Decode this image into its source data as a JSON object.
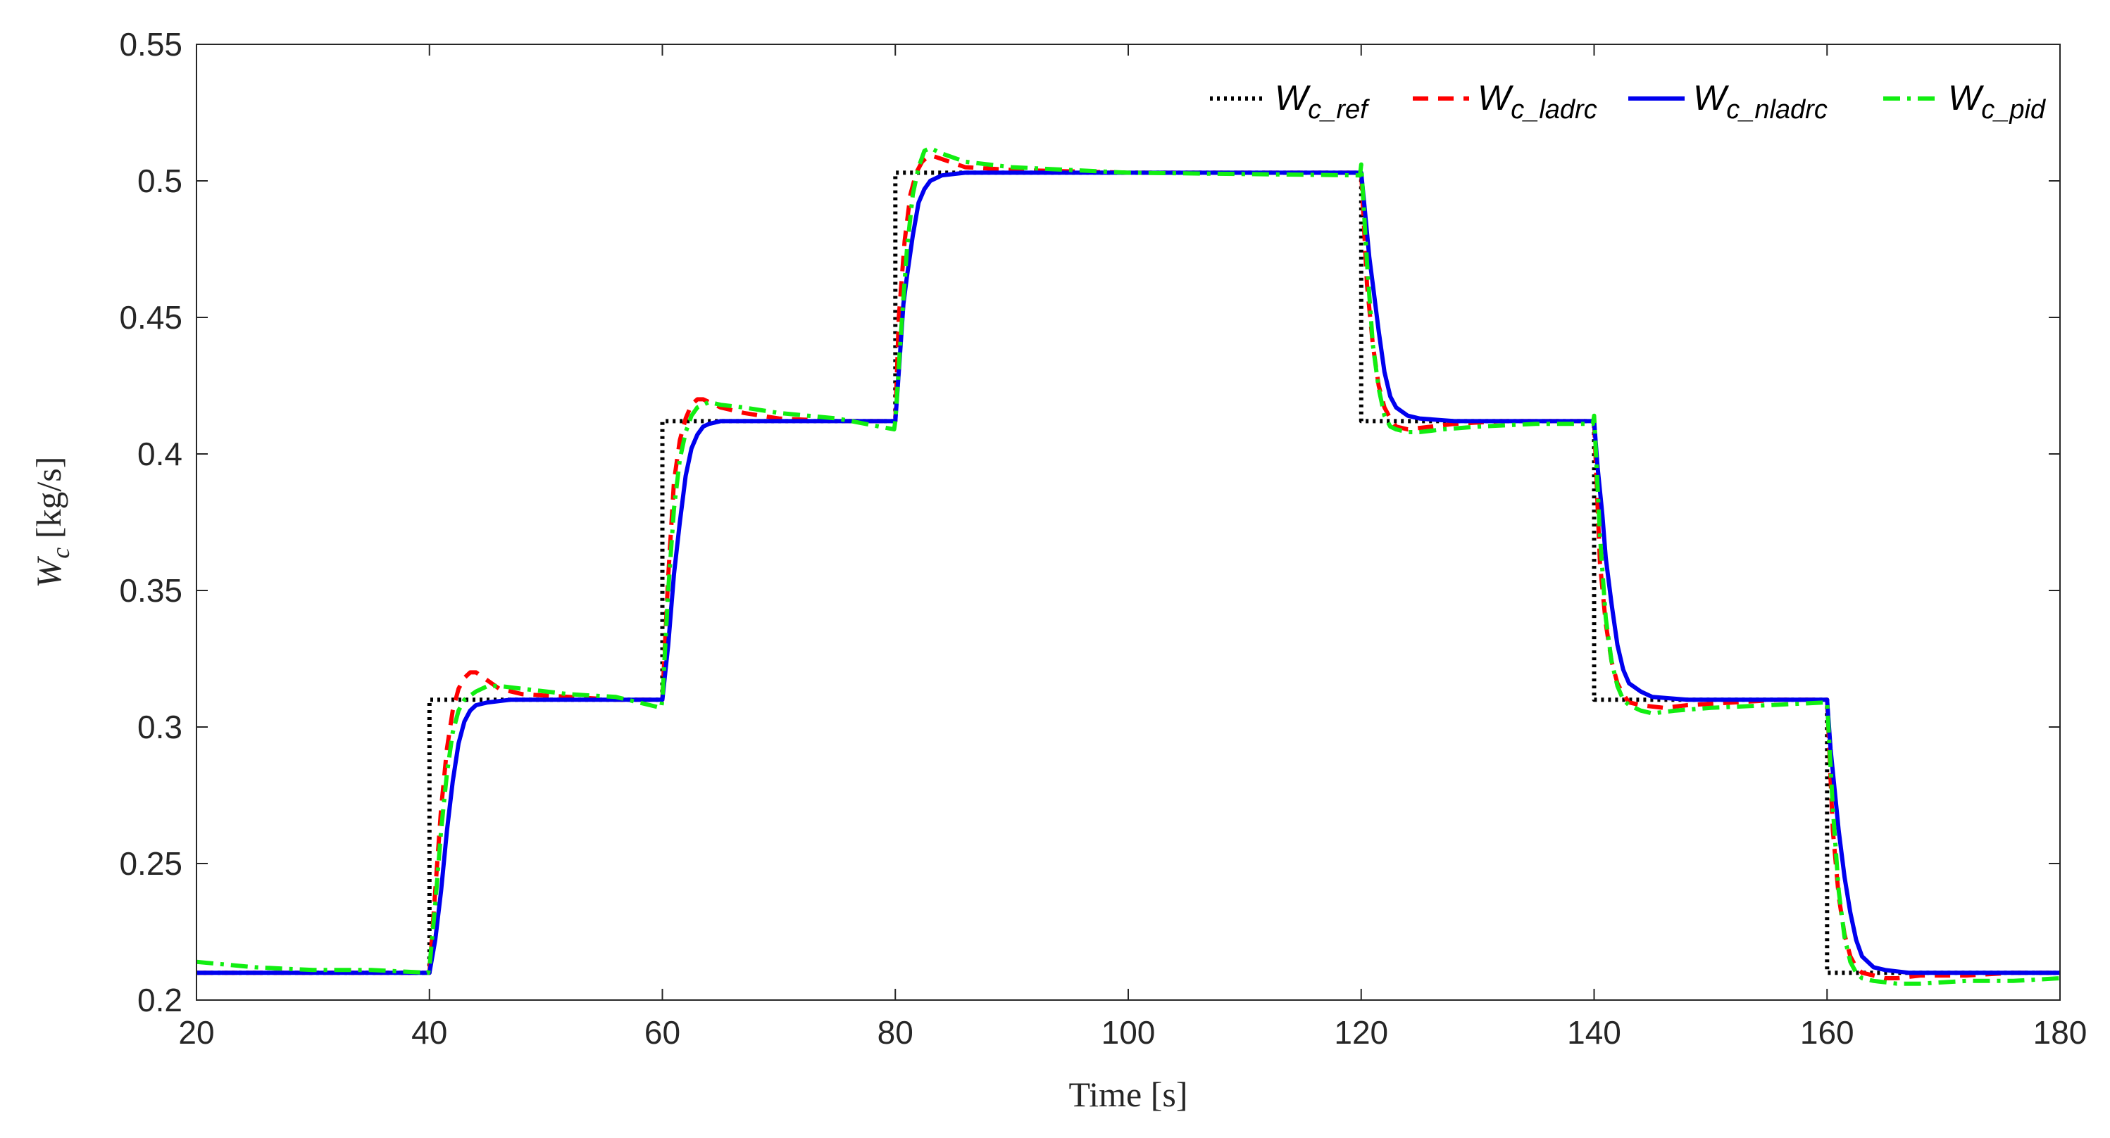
{
  "chart_data": {
    "type": "line",
    "xlabel": "Time [s]",
    "ylabel": {
      "main": "W",
      "sub": "c",
      "unit": " [kg/s]"
    },
    "xlim": [
      20,
      180
    ],
    "ylim": [
      0.2,
      0.55
    ],
    "xticks": [
      20,
      40,
      60,
      80,
      100,
      120,
      140,
      160,
      180
    ],
    "yticks": [
      0.2,
      0.25,
      0.3,
      0.35,
      0.4,
      0.45,
      0.5,
      0.55
    ],
    "xtick_labels": [
      "20",
      "40",
      "60",
      "80",
      "100",
      "120",
      "140",
      "160",
      "180"
    ],
    "ytick_labels": [
      "0.2",
      "0.25",
      "0.3",
      "0.35",
      "0.4",
      "0.45",
      "0.5",
      "0.55"
    ],
    "grid": false,
    "legend_position": "top-right",
    "legend_orientation": "horizontal",
    "series": [
      {
        "name": "W_c_ref",
        "label_main": "W",
        "label_sub": "c_ref",
        "color": "#000000",
        "style": "dotted",
        "x": [
          20,
          40,
          40,
          60,
          60,
          80,
          80,
          120,
          120,
          140,
          140,
          160,
          160,
          180
        ],
        "y": [
          0.21,
          0.21,
          0.31,
          0.31,
          0.412,
          0.412,
          0.503,
          0.503,
          0.412,
          0.412,
          0.31,
          0.31,
          0.21,
          0.21
        ]
      },
      {
        "name": "W_c_ladrc",
        "label_main": "W",
        "label_sub": "c_ladrc",
        "color": "#ff0000",
        "style": "dashed",
        "x": [
          20,
          40,
          40.5,
          41,
          41.5,
          42,
          42.5,
          43,
          43.5,
          44,
          45,
          46,
          48,
          52,
          56,
          60,
          60.5,
          61,
          61.5,
          62,
          62.5,
          63,
          63.5,
          64,
          65,
          67,
          70,
          75,
          80,
          80.3,
          80.8,
          81.3,
          81.8,
          82.3,
          82.8,
          83.3,
          84,
          86,
          90,
          100,
          120,
          120.5,
          121,
          121.5,
          122,
          122.5,
          123,
          124,
          126,
          128,
          132,
          136,
          140,
          140.5,
          141,
          141.5,
          142,
          142.5,
          143,
          144,
          146,
          148,
          152,
          156,
          160,
          160.5,
          161,
          161.5,
          162,
          162.5,
          163,
          164,
          165,
          166,
          168,
          172,
          176,
          180
        ],
        "y": [
          0.21,
          0.21,
          0.24,
          0.27,
          0.292,
          0.306,
          0.314,
          0.318,
          0.32,
          0.32,
          0.317,
          0.314,
          0.312,
          0.311,
          0.31,
          0.31,
          0.355,
          0.39,
          0.405,
          0.413,
          0.418,
          0.42,
          0.42,
          0.419,
          0.417,
          0.415,
          0.413,
          0.412,
          0.412,
          0.45,
          0.478,
          0.495,
          0.503,
          0.507,
          0.509,
          0.509,
          0.508,
          0.505,
          0.504,
          0.503,
          0.503,
          0.462,
          0.44,
          0.425,
          0.417,
          0.413,
          0.41,
          0.409,
          0.41,
          0.411,
          0.412,
          0.412,
          0.412,
          0.36,
          0.338,
          0.324,
          0.316,
          0.312,
          0.309,
          0.308,
          0.307,
          0.308,
          0.309,
          0.31,
          0.31,
          0.262,
          0.238,
          0.224,
          0.216,
          0.212,
          0.21,
          0.209,
          0.208,
          0.208,
          0.209,
          0.209,
          0.21,
          0.21
        ]
      },
      {
        "name": "W_c_nladrc",
        "label_main": "W",
        "label_sub": "c_nladrc",
        "color": "#0000ee",
        "style": "solid",
        "x": [
          20,
          40,
          40.5,
          41,
          41.5,
          42,
          42.5,
          43,
          43.5,
          44,
          45,
          47,
          50,
          55,
          60,
          60.5,
          61,
          61.5,
          62,
          62.5,
          63,
          63.5,
          64,
          65,
          67,
          70,
          75,
          80,
          80.3,
          80.7,
          81,
          81.5,
          82,
          82.5,
          83,
          84,
          86,
          90,
          100,
          120,
          120.3,
          120.7,
          121,
          121.5,
          122,
          122.5,
          123,
          124,
          125,
          128,
          132,
          136,
          140,
          140.3,
          140.7,
          141,
          141.5,
          142,
          142.5,
          143,
          144,
          145,
          148,
          152,
          156,
          160,
          160.3,
          160.7,
          161,
          161.5,
          162,
          162.5,
          163,
          164,
          165,
          167,
          170,
          175,
          180
        ],
        "y": [
          0.21,
          0.21,
          0.222,
          0.24,
          0.262,
          0.28,
          0.294,
          0.302,
          0.306,
          0.308,
          0.309,
          0.31,
          0.31,
          0.31,
          0.31,
          0.33,
          0.356,
          0.375,
          0.392,
          0.402,
          0.407,
          0.41,
          0.411,
          0.412,
          0.412,
          0.412,
          0.412,
          0.412,
          0.43,
          0.455,
          0.465,
          0.48,
          0.492,
          0.497,
          0.5,
          0.502,
          0.503,
          0.503,
          0.503,
          0.503,
          0.49,
          0.472,
          0.462,
          0.445,
          0.43,
          0.421,
          0.417,
          0.414,
          0.413,
          0.412,
          0.412,
          0.412,
          0.412,
          0.395,
          0.378,
          0.362,
          0.345,
          0.33,
          0.321,
          0.316,
          0.313,
          0.311,
          0.31,
          0.31,
          0.31,
          0.31,
          0.292,
          0.275,
          0.262,
          0.245,
          0.232,
          0.222,
          0.216,
          0.212,
          0.211,
          0.21,
          0.21,
          0.21,
          0.21
        ]
      },
      {
        "name": "W_c_pid",
        "label_main": "W",
        "label_sub": "c_pid",
        "color": "#11ee11",
        "style": "dashdot",
        "x": [
          20,
          25,
          30,
          35,
          39.9,
          40,
          40.5,
          41,
          41.5,
          42,
          42.5,
          43,
          44,
          45,
          46,
          48,
          52,
          56,
          59.9,
          60,
          60.5,
          61,
          61.5,
          62,
          62.5,
          63,
          64,
          65,
          67,
          70,
          75,
          79.9,
          80,
          80.5,
          81,
          81.5,
          82,
          82.5,
          83,
          84,
          86,
          90,
          100,
          119.9,
          120,
          120.5,
          121,
          121.5,
          122,
          122.5,
          123,
          124,
          125,
          127,
          130,
          135,
          139.9,
          140,
          140.5,
          141,
          141.5,
          142,
          142.5,
          143,
          144,
          145,
          147,
          150,
          155,
          159.9,
          160,
          160.5,
          161,
          161.5,
          162,
          162.5,
          163,
          164,
          166,
          168,
          172,
          176,
          180
        ],
        "y": [
          0.214,
          0.212,
          0.211,
          0.211,
          0.21,
          0.212,
          0.235,
          0.262,
          0.283,
          0.298,
          0.306,
          0.31,
          0.313,
          0.315,
          0.315,
          0.314,
          0.312,
          0.311,
          0.307,
          0.31,
          0.35,
          0.38,
          0.398,
          0.408,
          0.414,
          0.417,
          0.419,
          0.418,
          0.417,
          0.415,
          0.413,
          0.409,
          0.412,
          0.445,
          0.475,
          0.495,
          0.505,
          0.511,
          0.512,
          0.51,
          0.507,
          0.505,
          0.503,
          0.502,
          0.506,
          0.47,
          0.44,
          0.424,
          0.414,
          0.41,
          0.409,
          0.408,
          0.408,
          0.409,
          0.41,
          0.411,
          0.411,
          0.414,
          0.37,
          0.34,
          0.324,
          0.315,
          0.31,
          0.308,
          0.306,
          0.305,
          0.306,
          0.307,
          0.308,
          0.309,
          0.309,
          0.27,
          0.24,
          0.223,
          0.214,
          0.21,
          0.208,
          0.207,
          0.206,
          0.206,
          0.207,
          0.207,
          0.208
        ]
      }
    ]
  }
}
